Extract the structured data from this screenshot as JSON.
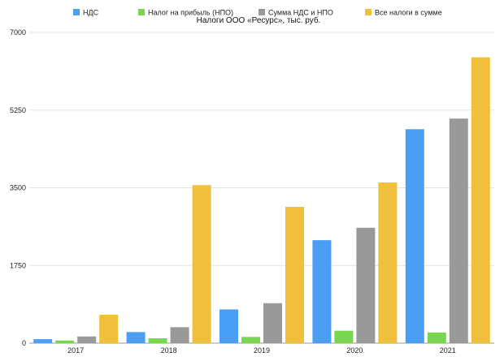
{
  "chart_data": {
    "type": "bar",
    "title": "Налоги ООО «Ресурс», тыс. руб.",
    "categories": [
      "2017",
      "2018",
      "2019",
      "2020",
      "2021"
    ],
    "series": [
      {
        "name": "НДС",
        "color": "#4a9ff5",
        "values": [
          90,
          250,
          760,
          2320,
          4820
        ]
      },
      {
        "name": "Налог на прибыль (НПО)",
        "color": "#7ad651",
        "values": [
          60,
          110,
          140,
          280,
          240
        ]
      },
      {
        "name": "Сумма НДС и НПО",
        "color": "#999999",
        "values": [
          150,
          360,
          900,
          2600,
          5060
        ]
      },
      {
        "name": "Все налоги в сумме",
        "color": "#f0bf3c",
        "values": [
          640,
          3560,
          3070,
          3620,
          6440
        ]
      }
    ],
    "yticks": [
      "0",
      "1750",
      "3500",
      "5250",
      "7000"
    ],
    "ylim": [
      0,
      7000
    ],
    "grid": true,
    "legend_position": "top"
  }
}
